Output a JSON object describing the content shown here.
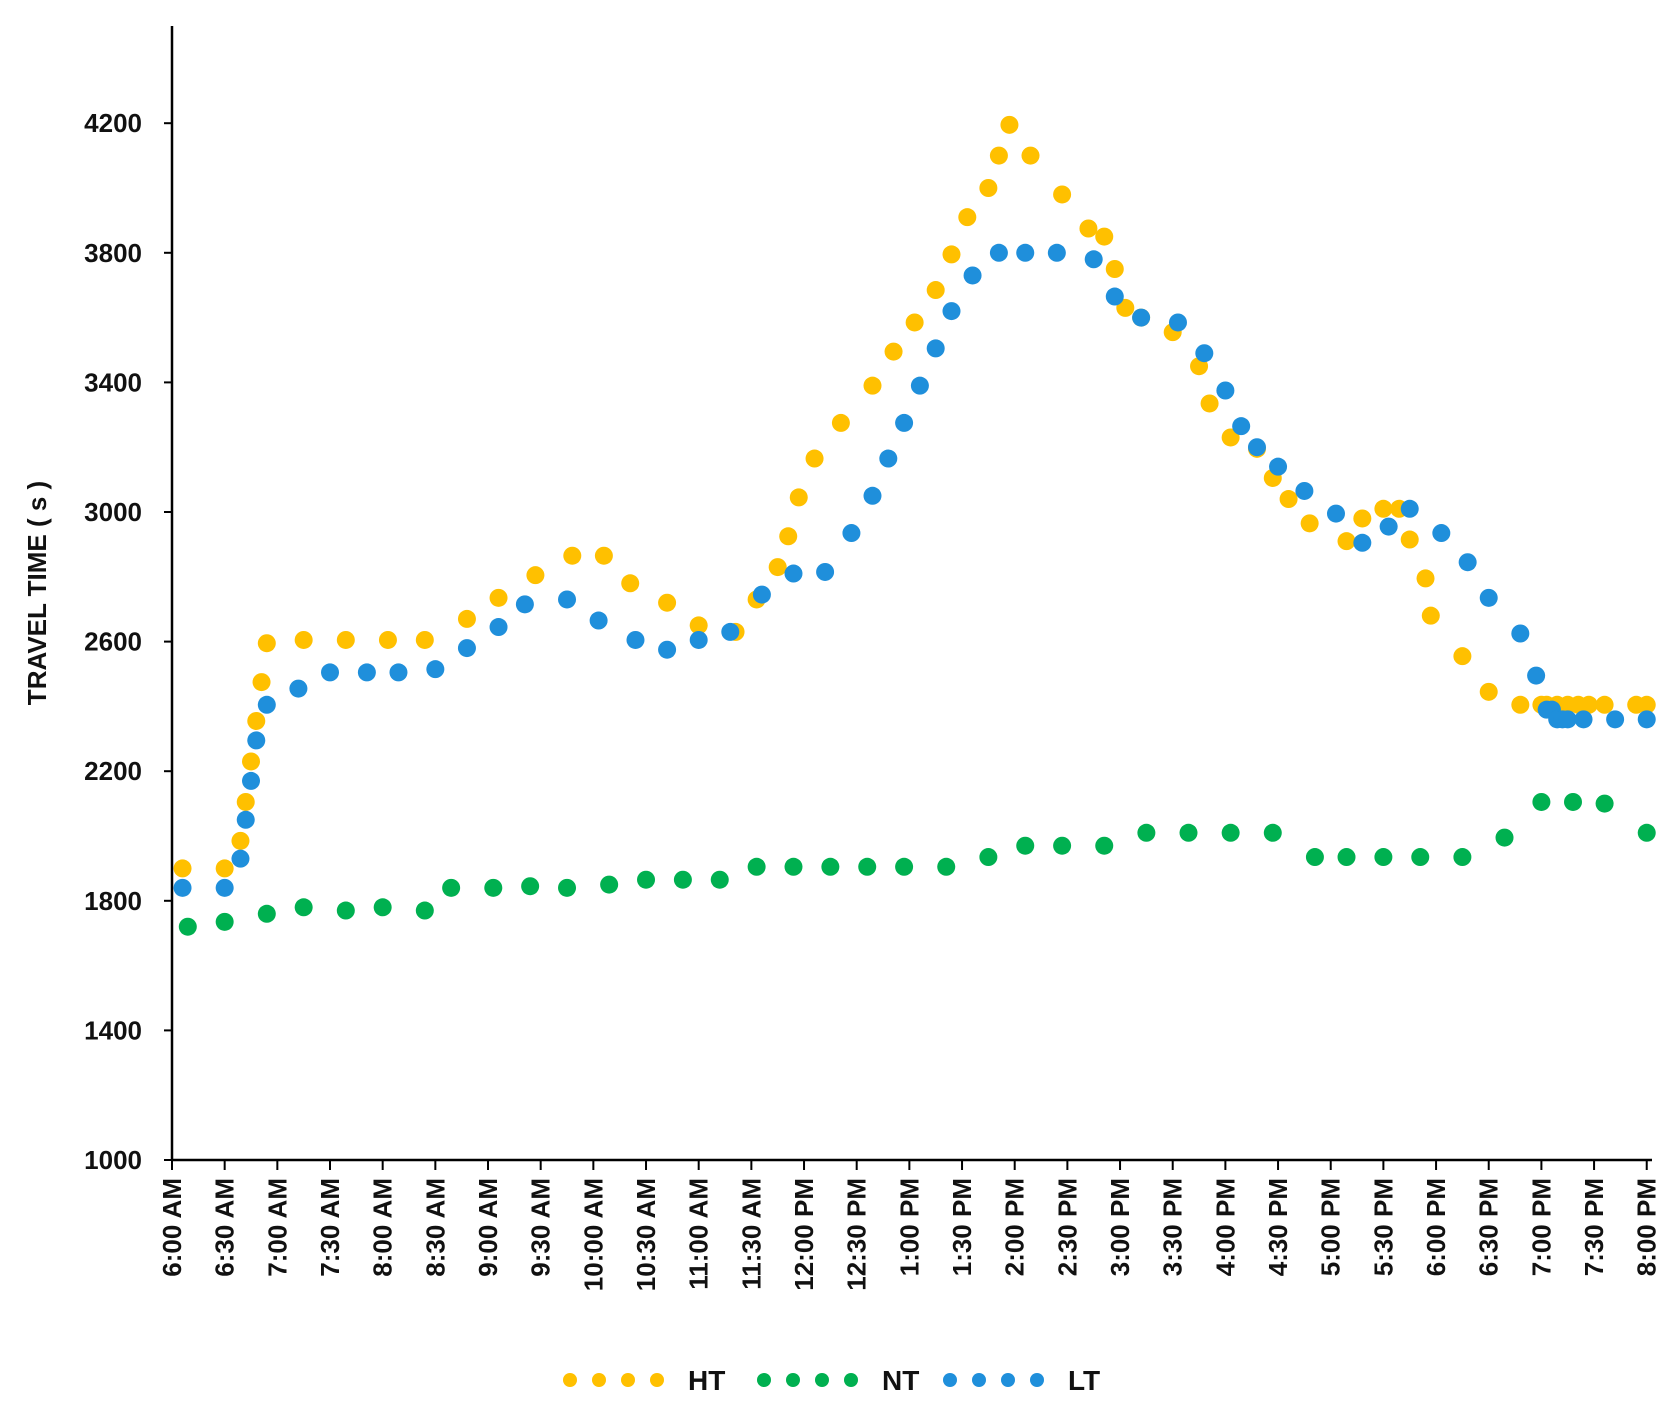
{
  "chart_data": {
    "type": "scatter",
    "title": "",
    "xlabel": "",
    "ylabel": "TRAVEL TIME ( s )",
    "ylim": [
      1000,
      4500
    ],
    "yticks": [
      1000,
      1400,
      1800,
      2200,
      2600,
      3000,
      3400,
      3800,
      4200
    ],
    "xlim": [
      0,
      14.05
    ],
    "x_unit": "hours after 6:00 AM",
    "grid": false,
    "legend_position": "bottom-center",
    "x_tick_labels": [
      "6:00 AM",
      "6:30 AM",
      "7:00 AM",
      "7:30 AM",
      "8:00 AM",
      "8:30 AM",
      "9:00 AM",
      "9:30 AM",
      "10:00 AM",
      "10:30 AM",
      "11:00 AM",
      "11:30 AM",
      "12:00 PM",
      "12:30 PM",
      "1:00 PM",
      "1:30 PM",
      "2:00 PM",
      "2:30 PM",
      "3:00 PM",
      "3:30 PM",
      "4:00 PM",
      "4:30 PM",
      "5:00 PM",
      "5:30 PM",
      "6:00 PM",
      "6:30 PM",
      "7:00 PM",
      "7:30 PM",
      "8:00 PM"
    ],
    "series": [
      {
        "name": "HT",
        "color": "#FFC000",
        "x": [
          0.1,
          0.5,
          0.65,
          0.7,
          0.75,
          0.8,
          0.85,
          0.9,
          1.25,
          1.65,
          2.05,
          2.4,
          2.8,
          3.1,
          3.45,
          3.8,
          4.1,
          4.35,
          4.7,
          5.0,
          5.35,
          5.55,
          5.75,
          5.85,
          5.95,
          6.1,
          6.35,
          6.65,
          6.85,
          7.05,
          7.25,
          7.4,
          7.55,
          7.75,
          7.85,
          7.95,
          8.15,
          8.45,
          8.7,
          8.85,
          8.95,
          9.05,
          9.2,
          9.5,
          9.75,
          9.85,
          10.05,
          10.3,
          10.45,
          10.6,
          10.8,
          11.15,
          11.3,
          11.5,
          11.65,
          11.75,
          11.9,
          11.95,
          12.25,
          12.5,
          12.8,
          13.0,
          13.05,
          13.15,
          13.25,
          13.35,
          13.45,
          13.6,
          13.9,
          14.0
        ],
        "y": [
          1900,
          1900,
          1985,
          2105,
          2230,
          2355,
          2475,
          2595,
          2605,
          2605,
          2605,
          2605,
          2670,
          2735,
          2805,
          2865,
          2865,
          2780,
          2720,
          2650,
          2630,
          2730,
          2830,
          2925,
          3045,
          3165,
          3275,
          3390,
          3495,
          3585,
          3685,
          3795,
          3910,
          4000,
          4100,
          4195,
          4100,
          3980,
          3875,
          3850,
          3750,
          3630,
          3600,
          3555,
          3450,
          3335,
          3230,
          3195,
          3105,
          3040,
          2965,
          2910,
          2980,
          3010,
          3010,
          2915,
          2795,
          2680,
          2555,
          2445,
          2405,
          2405,
          2405,
          2405,
          2405,
          2405,
          2405,
          2405,
          2405,
          2405
        ]
      },
      {
        "name": "NT",
        "color": "#00B050",
        "x": [
          0.15,
          0.5,
          0.9,
          1.25,
          1.65,
          2.0,
          2.4,
          2.65,
          3.05,
          3.4,
          3.75,
          4.15,
          4.5,
          4.85,
          5.2,
          5.55,
          5.9,
          6.25,
          6.6,
          6.95,
          7.35,
          7.75,
          8.1,
          8.45,
          8.85,
          9.25,
          9.65,
          10.05,
          10.45,
          10.85,
          11.15,
          11.5,
          11.85,
          12.25,
          12.65,
          13.0,
          13.3,
          13.6,
          14.0
        ],
        "y": [
          1720,
          1735,
          1760,
          1780,
          1770,
          1780,
          1770,
          1840,
          1840,
          1845,
          1840,
          1850,
          1865,
          1865,
          1865,
          1905,
          1905,
          1905,
          1905,
          1905,
          1905,
          1935,
          1970,
          1970,
          1970,
          2010,
          2010,
          2010,
          2010,
          1935,
          1935,
          1935,
          1935,
          1935,
          1995,
          2105,
          2105,
          2100,
          2010
        ]
      },
      {
        "name": "LT",
        "color": "#1F8FDB",
        "x": [
          0.1,
          0.5,
          0.65,
          0.7,
          0.75,
          0.8,
          0.9,
          1.2,
          1.5,
          1.85,
          2.15,
          2.5,
          2.8,
          3.1,
          3.35,
          3.75,
          4.05,
          4.4,
          4.7,
          5.0,
          5.3,
          5.6,
          5.9,
          6.2,
          6.45,
          6.65,
          6.8,
          6.95,
          7.1,
          7.25,
          7.4,
          7.6,
          7.85,
          8.1,
          8.4,
          8.75,
          8.95,
          9.2,
          9.55,
          9.8,
          10.0,
          10.15,
          10.3,
          10.5,
          10.75,
          11.05,
          11.3,
          11.55,
          11.75,
          12.05,
          12.3,
          12.5,
          12.8,
          12.95,
          13.05,
          13.1,
          13.15,
          13.2,
          13.25,
          13.4,
          13.7,
          14.0
        ],
        "y": [
          1840,
          1840,
          1930,
          2050,
          2170,
          2295,
          2405,
          2455,
          2505,
          2505,
          2505,
          2515,
          2580,
          2645,
          2715,
          2730,
          2665,
          2605,
          2575,
          2605,
          2630,
          2745,
          2810,
          2815,
          2935,
          3050,
          3165,
          3275,
          3390,
          3505,
          3620,
          3730,
          3800,
          3800,
          3800,
          3780,
          3665,
          3600,
          3585,
          3490,
          3375,
          3265,
          3200,
          3140,
          3065,
          2995,
          2905,
          2955,
          3010,
          2935,
          2845,
          2735,
          2625,
          2495,
          2390,
          2390,
          2360,
          2360,
          2360,
          2360,
          2360,
          2360
        ]
      }
    ]
  }
}
